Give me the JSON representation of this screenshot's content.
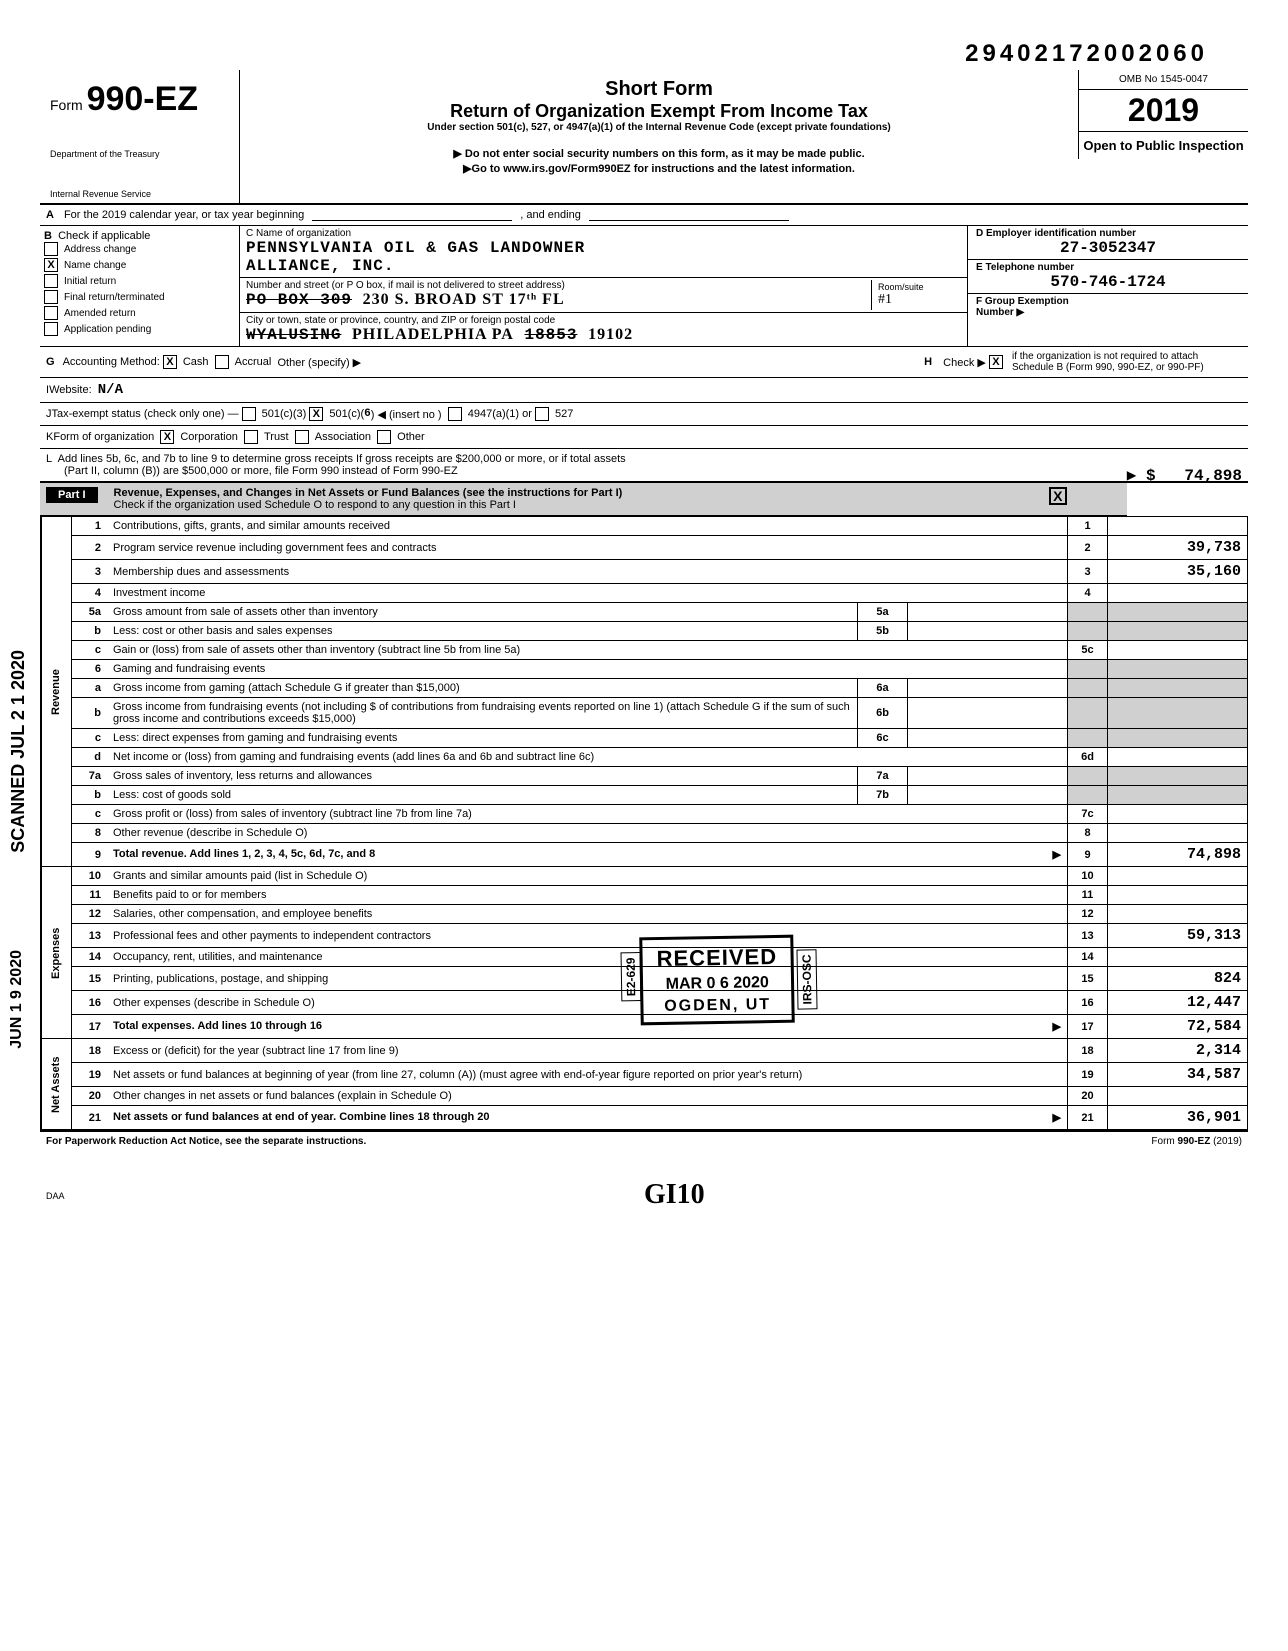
{
  "top_number": "29402172002060",
  "form": {
    "label": "Form",
    "number": "990-EZ",
    "dept1": "Department of the Treasury",
    "dept2": "Internal Revenue Service"
  },
  "title": {
    "short": "Short Form",
    "main": "Return of Organization Exempt From Income Tax",
    "under": "Under section 501(c), 527, or 4947(a)(1) of the Internal Revenue Code (except private foundations)",
    "donot": "▶ Do not enter social security numbers on this form, as it may be made public.",
    "goto": "▶Go to www.irs.gov/Form990EZ for instructions and the latest information."
  },
  "yearbox": {
    "omb": "OMB No 1545-0047",
    "year": "2019",
    "open": "Open to Public Inspection"
  },
  "rowA": {
    "label": "A",
    "text1": "For the 2019 calendar year, or tax year beginning",
    "text2": ", and ending"
  },
  "colB": {
    "label": "B",
    "hdr": "Check if applicable",
    "items": [
      {
        "label": "Address change",
        "checked": false
      },
      {
        "label": "Name change",
        "checked": true
      },
      {
        "label": "Initial return",
        "checked": false
      },
      {
        "label": "Final return/terminated",
        "checked": false
      },
      {
        "label": "Amended return",
        "checked": false
      },
      {
        "label": "Application pending",
        "checked": false
      }
    ]
  },
  "colC": {
    "name_label": "C  Name of organization",
    "name1": "PENNSYLVANIA OIL & GAS LANDOWNER",
    "name2": "ALLIANCE, INC.",
    "addr_label": "Number and street (or P O  box, if mail is not delivered to street address)",
    "addr_strike": "PO BOX 309",
    "addr_hand": "230 S. BROAD ST   17ᵗʰ FL",
    "room_label": "Room/suite",
    "room_val": "#1",
    "city_label": "City or town, state or province, country, and ZIP or foreign postal code",
    "city_strike": "WYALUSING",
    "city_hand": "PHILADELPHIA PA",
    "zip_strike": "18853",
    "zip_hand": "19102"
  },
  "colD": {
    "label": "D  Employer identification number",
    "val": "27-3052347"
  },
  "colE": {
    "label": "E  Telephone number",
    "val": "570-746-1724"
  },
  "colF": {
    "label": "F  Group Exemption",
    "label2": "Number  ▶"
  },
  "rowG": {
    "label": "G",
    "text": "Accounting Method:",
    "cash": "Cash",
    "accrual": "Accrual",
    "other": "Other (specify) ▶"
  },
  "rowH": {
    "label": "H",
    "text1": "Check ▶",
    "text2": "if the organization is not required to attach Schedule B (Form 990, 990-EZ, or 990-PF)"
  },
  "rowI": {
    "label": "I",
    "text": "Website:",
    "val": "N/A"
  },
  "rowJ": {
    "label": "J",
    "text": "Tax-exempt status (check only one) —",
    "opt1": "501(c)(3)",
    "opt2": "501(c)(",
    "opt2b": "6",
    "opt2c": ") ◀ (insert no )",
    "opt3": "4947(a)(1) or",
    "opt4": "527"
  },
  "rowK": {
    "label": "K",
    "text": "Form of organization",
    "corp": "Corporation",
    "trust": "Trust",
    "assoc": "Association",
    "other": "Other"
  },
  "rowL": {
    "label": "L",
    "text1": "Add lines 5b, 6c, and 7b to line 9 to determine gross receipts  If gross receipts are $200,000 or more, or if total assets",
    "text2": "(Part II, column (B)) are $500,000 or more, file Form 990 instead of Form 990-EZ",
    "amount": "74,898"
  },
  "part1": {
    "pn": "Part I",
    "title": "Revenue, Expenses, and Changes in Net Assets or Fund Balances",
    "sub1": "(see the instructions for Part I)",
    "sub2": "Check if the organization used Schedule O to respond to any question in this Part I"
  },
  "side_labels": {
    "revenue": "Revenue",
    "expenses": "Expenses",
    "netassets": "Net Assets"
  },
  "lines": [
    {
      "n": "1",
      "d": "Contributions, gifts, grants, and similar amounts received",
      "rb": "1",
      "rv": ""
    },
    {
      "n": "2",
      "d": "Program service revenue including government fees and contracts",
      "rb": "2",
      "rv": "39,738"
    },
    {
      "n": "3",
      "d": "Membership dues and assessments",
      "rb": "3",
      "rv": "35,160"
    },
    {
      "n": "4",
      "d": "Investment income",
      "rb": "4",
      "rv": ""
    },
    {
      "n": "5a",
      "d": "Gross amount from sale of assets other than inventory",
      "mb": "5a",
      "mv": ""
    },
    {
      "n": "b",
      "d": "Less: cost or other basis and sales expenses",
      "mb": "5b",
      "mv": ""
    },
    {
      "n": "c",
      "d": "Gain or (loss) from sale of assets other than inventory (subtract line 5b from line 5a)",
      "rb": "5c",
      "rv": ""
    },
    {
      "n": "6",
      "d": "Gaming and fundraising events"
    },
    {
      "n": "a",
      "d": "Gross income from gaming (attach Schedule G if greater than $15,000)",
      "mb": "6a",
      "mv": ""
    },
    {
      "n": "b",
      "d": "Gross income from fundraising events (not including $                     of contributions from fundraising events reported on line 1) (attach Schedule G if the sum of such gross income and contributions exceeds $15,000)",
      "mb": "6b",
      "mv": ""
    },
    {
      "n": "c",
      "d": "Less: direct expenses from gaming and fundraising events",
      "mb": "6c",
      "mv": ""
    },
    {
      "n": "d",
      "d": "Net income or (loss) from gaming and fundraising events (add lines 6a and 6b and subtract line 6c)",
      "rb": "6d",
      "rv": ""
    },
    {
      "n": "7a",
      "d": "Gross sales of inventory, less returns and allowances",
      "mb": "7a",
      "mv": ""
    },
    {
      "n": "b",
      "d": "Less: cost of goods sold",
      "mb": "7b",
      "mv": ""
    },
    {
      "n": "c",
      "d": "Gross profit or (loss) from sales of inventory (subtract line 7b from line 7a)",
      "rb": "7c",
      "rv": ""
    },
    {
      "n": "8",
      "d": "Other revenue (describe in Schedule O)",
      "rb": "8",
      "rv": ""
    },
    {
      "n": "9",
      "d": "Total revenue. Add lines 1, 2, 3, 4, 5c, 6d, 7c, and 8",
      "rb": "9",
      "rv": "74,898",
      "bold": true,
      "arrow": true
    },
    {
      "n": "10",
      "d": "Grants and similar amounts paid (list in Schedule O)",
      "rb": "10",
      "rv": ""
    },
    {
      "n": "11",
      "d": "Benefits paid to or for members",
      "rb": "11",
      "rv": ""
    },
    {
      "n": "12",
      "d": "Salaries, other compensation, and employee benefits",
      "rb": "12",
      "rv": ""
    },
    {
      "n": "13",
      "d": "Professional fees and other payments to independent contractors",
      "rb": "13",
      "rv": "59,313"
    },
    {
      "n": "14",
      "d": "Occupancy, rent, utilities, and maintenance",
      "rb": "14",
      "rv": ""
    },
    {
      "n": "15",
      "d": "Printing, publications, postage, and shipping",
      "rb": "15",
      "rv": "824"
    },
    {
      "n": "16",
      "d": "Other expenses (describe in Schedule O)",
      "rb": "16",
      "rv": "12,447"
    },
    {
      "n": "17",
      "d": "Total expenses. Add lines 10 through 16",
      "rb": "17",
      "rv": "72,584",
      "bold": true,
      "arrow": true
    },
    {
      "n": "18",
      "d": "Excess or (deficit) for the year (subtract line 17 from line 9)",
      "rb": "18",
      "rv": "2,314"
    },
    {
      "n": "19",
      "d": "Net assets or fund balances at beginning of year (from line 27, column (A)) (must agree with end-of-year figure reported on prior year's return)",
      "rb": "19",
      "rv": "34,587"
    },
    {
      "n": "20",
      "d": "Other changes in net assets or fund balances (explain in Schedule O)",
      "rb": "20",
      "rv": ""
    },
    {
      "n": "21",
      "d": "Net assets or fund balances at end of year. Combine lines 18 through 20",
      "rb": "21",
      "rv": "36,901",
      "bold": true,
      "arrow": true
    }
  ],
  "stamp": {
    "received": "RECEIVED",
    "date": "MAR 0 6 2020",
    "loc": "OGDEN, UT",
    "side_l": "E2-629",
    "side_r": "IRS-OSC"
  },
  "footer": {
    "left": "For Paperwork Reduction Act Notice, see the separate instructions.",
    "right": "Form 990-EZ (2019)",
    "daa": "DAA"
  },
  "side_stamps": {
    "scanned": "SCANNED  JUL 2 1 2020",
    "date2": "JUN 1 9 2020"
  },
  "hand_bottom": "GI10"
}
